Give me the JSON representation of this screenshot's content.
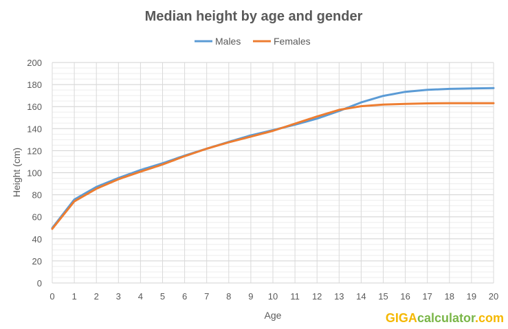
{
  "chart_data": {
    "type": "line",
    "title": "Median height by age and gender",
    "xlabel": "Age",
    "ylabel": "Height (cm)",
    "x": [
      0,
      1,
      2,
      3,
      4,
      5,
      6,
      7,
      8,
      9,
      10,
      11,
      12,
      13,
      14,
      15,
      16,
      17,
      18,
      19,
      20
    ],
    "xlim": [
      0,
      20
    ],
    "ylim": [
      0,
      200
    ],
    "yticks": [
      0,
      20,
      40,
      60,
      80,
      100,
      120,
      140,
      160,
      180,
      200
    ],
    "grid": true,
    "legend_position": "top",
    "series": [
      {
        "name": "Males",
        "color": "#5B9BD5",
        "values": [
          49.9,
          75.7,
          87.1,
          95.2,
          102.5,
          108.6,
          115.5,
          121.9,
          128.0,
          133.9,
          138.6,
          143.6,
          149.1,
          156.0,
          163.8,
          169.7,
          173.4,
          175.2,
          176.1,
          176.5,
          176.8
        ]
      },
      {
        "name": "Females",
        "color": "#ED7D31",
        "values": [
          49.1,
          74.0,
          85.5,
          94.1,
          101.0,
          107.5,
          115.0,
          121.8,
          127.6,
          132.8,
          138.0,
          144.5,
          151.0,
          157.1,
          160.4,
          161.8,
          162.4,
          162.9,
          163.1,
          163.1,
          163.1
        ]
      }
    ]
  },
  "branding": {
    "part1": "GIGA",
    "part2": "calculator",
    "part3": ".com",
    "color1": "#F5B800",
    "color2": "#7AB648"
  }
}
